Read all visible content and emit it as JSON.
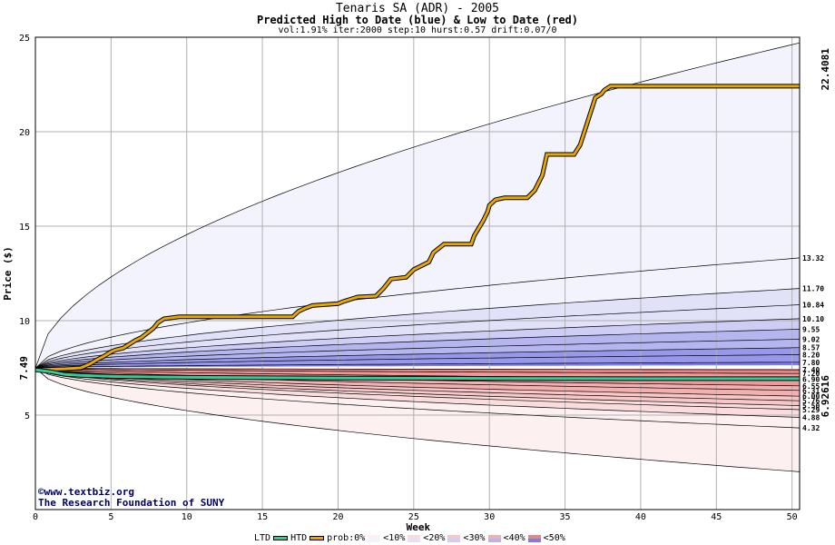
{
  "header": {
    "title": "Tenaris SA (ADR) - 2005",
    "subtitle": "Predicted High to Date (blue) &  Low to Date (red)",
    "params": "vol:1.91% iter:2000 step:10 hurst:0.57 drift:0.07/0"
  },
  "credits": {
    "line1": "©www.textbiz.org",
    "line2": "The Research Foundation of SUNY"
  },
  "legend": {
    "ltd": "LTD",
    "htd": "HTD",
    "prob": "prob:0%",
    "b10": "<10%",
    "b20": "<20%",
    "b30": "<30%",
    "b40": "<40%",
    "b50": "<50%"
  },
  "colors": {
    "ltd_line": "#33cc99",
    "htd_line": "#e6a800",
    "blue_bands": [
      "#f3f3fd",
      "#e1e1f8",
      "#cdcdf5",
      "#b5b5f0",
      "#9898ea",
      "#7d7de6"
    ],
    "red_bands": [
      "#fdf0f0",
      "#fadcdc",
      "#f7c7c7",
      "#f3b0b0",
      "#f09898",
      "#ec8383"
    ]
  },
  "chart_data": {
    "type": "area",
    "xlabel": "Week",
    "ylabel": "Price ($)",
    "xlim": [
      0,
      50.5
    ],
    "ylim": [
      0,
      25
    ],
    "xticks": [
      0,
      5,
      10,
      15,
      20,
      25,
      30,
      35,
      40,
      45,
      50
    ],
    "yticks": [
      5,
      10,
      15,
      20,
      25
    ],
    "start_price": 7.49,
    "start_label": "7.49",
    "high_quantile_end_values": [
      24.7,
      13.32,
      11.7,
      10.84,
      10.1,
      9.55,
      9.02,
      8.57,
      8.2,
      7.8
    ],
    "low_quantile_end_values": [
      7.4,
      7.2,
      6.9,
      6.55,
      6.31,
      6.0,
      5.76,
      5.5,
      5.29,
      4.88,
      4.32,
      2.0
    ],
    "right_labels": [
      "13.32",
      "11.70",
      "10.84",
      "10.10",
      "9.55",
      "9.02",
      "8.57",
      "8.20",
      "7.80",
      "7.40",
      "7.20",
      "6.90",
      "6.55",
      "6.31",
      "6.00",
      "5.76",
      "5.50",
      "5.29",
      "4.88",
      "4.32"
    ],
    "htd_label": "22.4081",
    "ltd_label": "6.92616",
    "series": [
      {
        "name": "HTD",
        "x": [
          0,
          2,
          3,
          3.6,
          4,
          4.5,
          5,
          5.3,
          5.8,
          6.2,
          6.6,
          7.0,
          7.4,
          7.8,
          8.1,
          8.5,
          9.5,
          17,
          17.4,
          17.8,
          18.3,
          20,
          20.3,
          20.7,
          21.3,
          22.5,
          23,
          23.5,
          24.5,
          25,
          26,
          26.3,
          27,
          27.2,
          27.6,
          28.8,
          29,
          29.3,
          29.6,
          29.9,
          30,
          30.4,
          31,
          32.5,
          33,
          33.5,
          33.8,
          35.6,
          36,
          36.4,
          37,
          37.4,
          37.6,
          38,
          50.5
        ],
        "y": [
          7.4,
          7.45,
          7.5,
          7.7,
          7.9,
          8.1,
          8.35,
          8.45,
          8.55,
          8.75,
          8.95,
          9.1,
          9.35,
          9.6,
          9.9,
          10.1,
          10.2,
          10.2,
          10.5,
          10.65,
          10.8,
          10.9,
          11.0,
          11.1,
          11.25,
          11.3,
          11.7,
          12.2,
          12.3,
          12.7,
          13.1,
          13.6,
          14.05,
          14.05,
          14.05,
          14.05,
          14.5,
          14.9,
          15.3,
          15.8,
          16.1,
          16.4,
          16.5,
          16.5,
          16.9,
          17.7,
          18.8,
          18.8,
          19.3,
          20.3,
          21.8,
          22.0,
          22.2,
          22.4081,
          22.4081
        ]
      },
      {
        "name": "LTD",
        "x": [
          0,
          1,
          1.5,
          2,
          3,
          5,
          10,
          20,
          30,
          40,
          50.5
        ],
        "y": [
          7.4,
          7.3,
          7.22,
          7.15,
          7.1,
          7.05,
          7.0,
          6.96,
          6.94,
          6.93,
          6.92616
        ]
      }
    ]
  }
}
